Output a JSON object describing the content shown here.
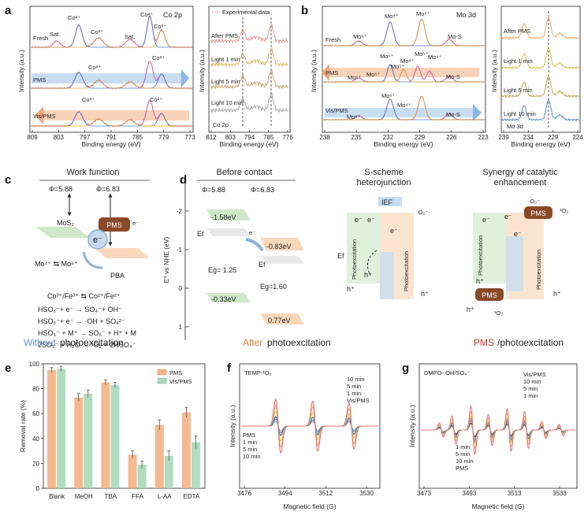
{
  "panels": {
    "a": {
      "letter": "a",
      "label": "Co 2p",
      "xlabel": "Binding energy (eV)",
      "ylabel": "Intensity (a.u.)",
      "xticks": [
        "809",
        "803",
        "797",
        "791",
        "785",
        "779",
        "773"
      ],
      "rows": [
        "Fresh",
        "PMS",
        "Vis/PMS"
      ],
      "annot": {
        "co2_a": "Co²⁺",
        "co3_a": "Co³⁺",
        "sat1": "Sat.",
        "sat2": "Sat.",
        "co2_b": "Co²⁺",
        "co3_b": "Co³⁺",
        "co3_c": "Co³⁺",
        "co3_d": "Co³⁺",
        "co2_c": "Co²⁺",
        "co2_d": "Co²⁺"
      }
    },
    "a2": {
      "label": "Co 2p",
      "legend": "Experimental data",
      "xlabel": "Binding energy (eV)",
      "ylabel": "Intensity (a.u.)",
      "xticks": [
        "812",
        "803",
        "794",
        "785",
        "776"
      ],
      "rows": [
        "After PMS",
        "Light 1 min",
        "Light 5 min",
        "Light 10 min"
      ]
    },
    "b": {
      "letter": "b",
      "label": "Mo 3d",
      "xlabel": "Binding energy (eV)",
      "ylabel": "Intensity (a.u.)",
      "xticks": [
        "238",
        "235",
        "232",
        "229",
        "226",
        "223"
      ],
      "rows": [
        "Fresh",
        "PMS",
        "Vis/PMS"
      ],
      "annot": {
        "mo6_a": "Mo⁶⁺",
        "mo4_a": "Mo⁴⁺",
        "mo4_b": "Mo⁴⁺",
        "mos_a": "Mo-S",
        "mo6_b": "Mo⁶⁺",
        "mo5_a": "Mo⁵⁺",
        "mo4_c": "Mo⁴⁺",
        "mo5_b": "Mo⁵⁺",
        "mo4_d": "Mo⁴⁺",
        "mo6_c": "Mo⁶⁺",
        "mo5_c": "Mo⁵⁺",
        "mos_b": "Mo-S",
        "mo6_d": "Mo⁶⁺",
        "mo6_e": "Mo⁶⁺",
        "mo4_e": "Mo⁴⁺",
        "mos_c": "Mo-S"
      }
    },
    "b2": {
      "label": "Mo 3d",
      "xlabel": "Binding energy (eV)",
      "ylabel": "Intensity (a.u.)",
      "xticks": [
        "239",
        "234",
        "229",
        "224"
      ],
      "rows": [
        "After PMS",
        "Light 1 min",
        "Light 5 min",
        "Light 10 min"
      ]
    },
    "c": {
      "letter": "c",
      "title": "Work function",
      "phi1": "Φ=5.88",
      "phi2": "Φ=6.83",
      "mos2": "MoS₂",
      "pbs": "PBA",
      "pms": "PMS",
      "electron": "e⁻",
      "e_small": "e⁻",
      "redox1": "Mo⁴⁺ ⇆ Mo⁶⁺",
      "redox2": "Co³⁺/Fe³⁺ ⇆ Co²⁺/Fe²⁺",
      "eq1": "HSO₅⁻+ e⁻ → SO₄⁻+ OH⁻",
      "eq2": "HSO₅⁻+ e⁻ → ·OH + SO₄²⁻",
      "eq3": "HSO₅⁻ + M⁺ → SO₅⁻ + H⁺ + M",
      "eq4": "2SO₅⁻ + H₂O → ¹O₂ + 2HSO₄⁻",
      "cap_a": "Without",
      "cap_b": " photoexcitation"
    },
    "d": {
      "letter": "d",
      "ylabel": "E⁰ vs NHE (eV)",
      "yticks": [
        "-2",
        "-1",
        "0",
        "1"
      ],
      "title1": "Before contact",
      "phi1": "Φ=5.88",
      "phi2": "Φ=6.83",
      "cb1": "-1.58eV",
      "vb1": "-0.33eV",
      "cb2": "-0.83eV",
      "vb2": "0.77eV",
      "eg1": "Eg= 1.25",
      "eg2": "Eg=1.60",
      "ef1": "Ef",
      "ef2": "Ef",
      "e": "e⁻",
      "title2a": "S-scheme",
      "title2b": "heterojunction",
      "ief": "IEF",
      "o2": "·O₂⁻",
      "photo": "Photoexcitation",
      "h": "h⁺",
      "e2": "e⁻",
      "ef3": "Ef",
      "title3a": "Synergy of catalytic",
      "title3b": "enhancement",
      "so2": "¹O₂",
      "o2b": "·O₂⁻",
      "pms": "PMS",
      "cap1a": "After",
      "cap1b": " photoexcitation",
      "cap2a": "PMS",
      "cap2b": "/photoexcitation"
    }
  },
  "chart_data": [
    {
      "panel": "e",
      "type": "bar",
      "title": "",
      "xlabel": "",
      "ylabel": "Removal rate (%)",
      "categories": [
        "Blank",
        "MeOH",
        "TBA",
        "FFA",
        "L-AA",
        "EDTA"
      ],
      "ylim": [
        0,
        100
      ],
      "yticks": [
        "0",
        "20",
        "40",
        "60",
        "80",
        "100"
      ],
      "series": [
        {
          "name": "PMS",
          "color": "#f4b183",
          "values": [
            95,
            73,
            85,
            27,
            51,
            61
          ],
          "errors": [
            2,
            3,
            2,
            3,
            4,
            4
          ]
        },
        {
          "name": "Vis/PMS",
          "color": "#a9d8b8",
          "values": [
            96,
            76,
            83,
            19,
            26,
            37
          ],
          "errors": [
            2,
            3,
            2,
            3,
            4,
            5
          ]
        }
      ]
    },
    {
      "panel": "f",
      "type": "line",
      "title": "TEMP-¹O₂",
      "xlabel": "Magnetic field (G)",
      "ylabel": "Intensity (a.u.)",
      "xlim": [
        3476,
        3540
      ],
      "xticks": [
        "3476",
        "3494",
        "3512",
        "3530"
      ],
      "series_top": [
        "10 min",
        "5 min",
        "1 min",
        "Vis/PMS"
      ],
      "series_bottom": [
        "PMS",
        "1 min",
        "5 min",
        "10 min"
      ],
      "top_colors": [
        "#e8706f",
        "#f0a86e",
        "#e5c447",
        "#333333"
      ],
      "bottom_colors": [
        "#1f6fb5",
        "#9fb6cf",
        "#5a8ecb",
        "#1f6fb5"
      ]
    },
    {
      "panel": "g",
      "type": "line",
      "title": "DMPO- OH/SO₄⁻",
      "xlabel": "Magnetic field (G)",
      "ylabel": "Intensity (a.u.)",
      "xlim": [
        3473,
        3545
      ],
      "xticks": [
        "3473",
        "3493",
        "3513",
        "3533"
      ],
      "series_top": [
        "Vis/PMS",
        "10 min",
        "5 min",
        "1 min"
      ],
      "series_bottom": [
        "1 min",
        "5 min",
        "10 min",
        "PMS"
      ],
      "top_colors": [
        "#333333",
        "#e8706f",
        "#f0a86e",
        "#e5c447"
      ],
      "bottom_colors": [
        "#9fb6cf",
        "#5a8ecb",
        "#1f6fb5",
        "#333333"
      ]
    }
  ]
}
